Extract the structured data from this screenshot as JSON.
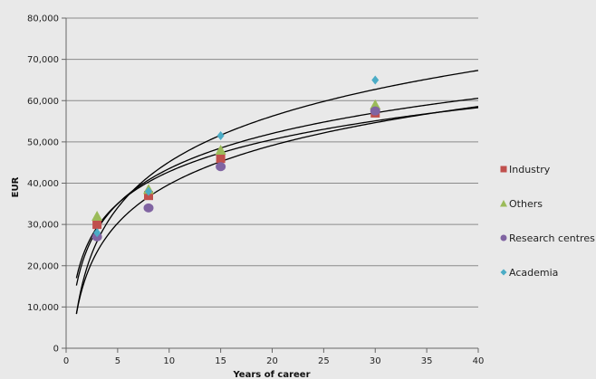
{
  "chart_data": {
    "type": "scatter",
    "xlabel": "Years of career",
    "ylabel": "EUR",
    "xlim": [
      0,
      40
    ],
    "ylim": [
      0,
      80000
    ],
    "x_ticks": [
      "0",
      "5",
      "10",
      "15",
      "20",
      "25",
      "30",
      "35",
      "40"
    ],
    "y_ticks": [
      "0",
      "10,000",
      "20,000",
      "30,000",
      "40,000",
      "50,000",
      "60,000",
      "70,000",
      "80,000"
    ],
    "grid": "horizontal",
    "legend_position": "right",
    "series": [
      {
        "name": "Industry",
        "marker": "square",
        "color": "#c0504d",
        "x": [
          3,
          8,
          15,
          30
        ],
        "y": [
          30000,
          37000,
          46000,
          57000
        ]
      },
      {
        "name": "Others",
        "marker": "triangle",
        "color": "#9bbb59",
        "x": [
          3,
          8,
          15,
          30
        ],
        "y": [
          32000,
          38500,
          48000,
          59000
        ]
      },
      {
        "name": "Research centres",
        "marker": "circle",
        "color": "#8064a2",
        "x": [
          3,
          8,
          15,
          30
        ],
        "y": [
          27000,
          34000,
          44000,
          57500
        ]
      },
      {
        "name": "Academia",
        "marker": "diamond",
        "color": "#4bacc6",
        "x": [
          3,
          8,
          15,
          30
        ],
        "y": [
          28000,
          38000,
          51500,
          65000
        ]
      }
    ],
    "trendlines": [
      {
        "type": "log",
        "a": 15200,
        "b": 12300
      },
      {
        "type": "log",
        "a": 17000,
        "b": 11200
      },
      {
        "type": "log",
        "a": 8300,
        "b": 16000
      },
      {
        "type": "log",
        "a": 8400,
        "b": 13600
      }
    ]
  }
}
